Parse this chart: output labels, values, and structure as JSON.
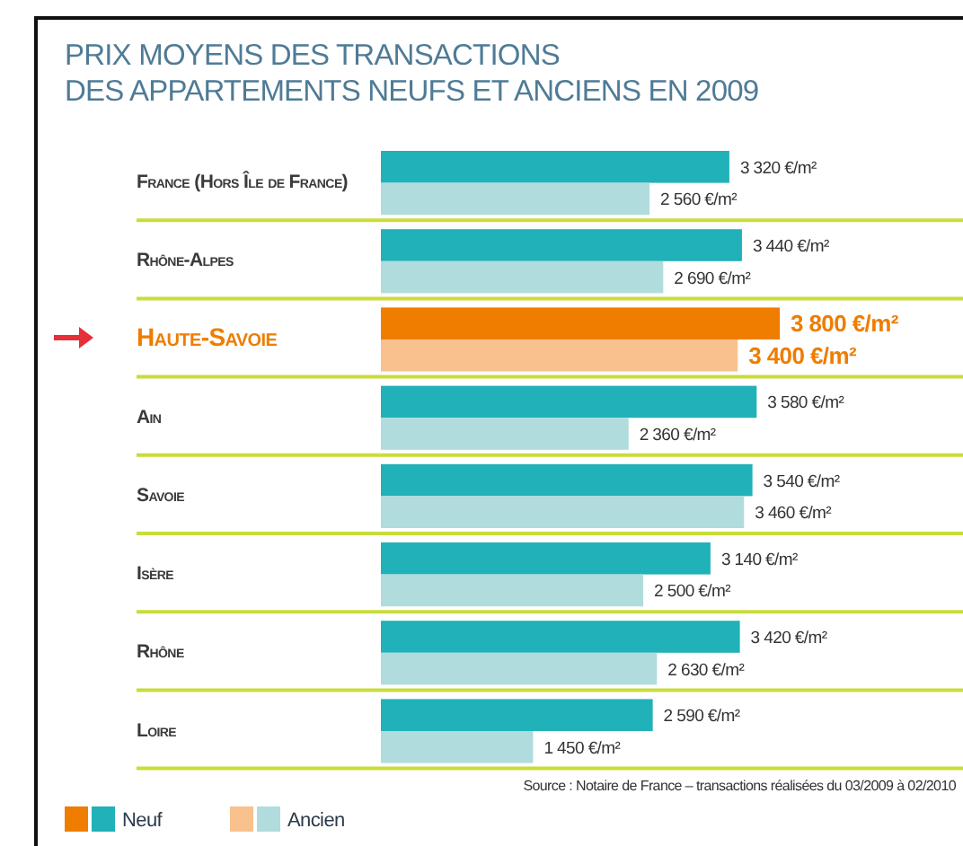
{
  "chart_data": {
    "type": "bar",
    "orientation": "horizontal",
    "title": "PRIX MOYENS DES TRANSACTIONS\nDES APPARTEMENTS NEUFS ET ANCIENS EN 2009",
    "categories": [
      "France (Hors Île de France)",
      "Rhône-Alpes",
      "Haute-Savoie",
      "Ain",
      "Savoie",
      "Isère",
      "Rhône",
      "Loire"
    ],
    "series": [
      {
        "name": "Neuf",
        "color": "#20b1b9",
        "colors": [
          "#20b1b9",
          "#20b1b9",
          "#ee7d00",
          "#20b1b9",
          "#20b1b9",
          "#20b1b9",
          "#20b1b9",
          "#20b1b9"
        ],
        "values": [
          3320,
          3440,
          3800,
          3580,
          3540,
          3140,
          3420,
          2590
        ],
        "value_labels": [
          "3 320 €/m²",
          "3 440 €/m²",
          "3 800 €/m²",
          "3 580 €/m²",
          "3 540 €/m²",
          "3 140 €/m²",
          "3 420 €/m²",
          "2 590 €/m²"
        ]
      },
      {
        "name": "Ancien",
        "color": "#b0dcdd",
        "colors": [
          "#b0dcdd",
          "#b0dcdd",
          "#f8c18d",
          "#b0dcdd",
          "#b0dcdd",
          "#b0dcdd",
          "#b0dcdd",
          "#b0dcdd"
        ],
        "values": [
          2560,
          2690,
          3400,
          2360,
          3460,
          2500,
          2630,
          1450
        ],
        "value_labels": [
          "2 560 €/m²",
          "2 690 €/m²",
          "3 400 €/m²",
          "2 360 €/m²",
          "3 460 €/m²",
          "2 500 €/m²",
          "2 630 €/m²",
          "1 450 €/m²"
        ]
      }
    ],
    "legend": "bottom left",
    "grid": "y",
    "annotations": [
      "Source : Notaire de France – transactions réalisées du 03/2009 à 02/2010"
    ]
  }
}
